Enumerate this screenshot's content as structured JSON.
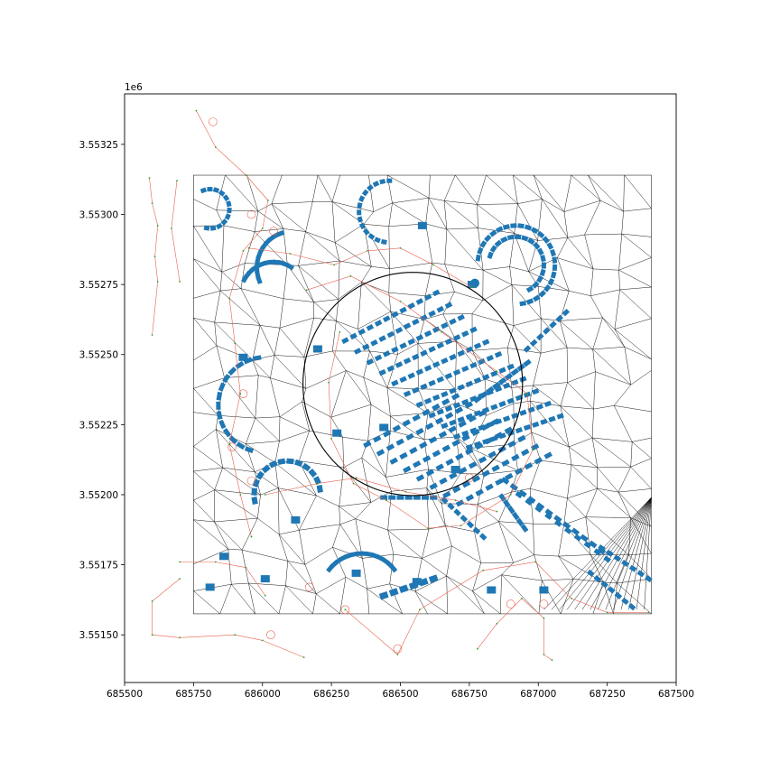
{
  "chart_data": {
    "type": "scatter",
    "title": "",
    "xlabel": "",
    "ylabel": "",
    "y_offset_text": "1e6",
    "xlim": [
      685500,
      687500
    ],
    "ylim": [
      3551330,
      3553430
    ],
    "x_ticks": [
      685500,
      685750,
      686000,
      686250,
      686500,
      686750,
      687000,
      687250,
      687500
    ],
    "x_tick_labels": [
      "685500",
      "685750",
      "686000",
      "686250",
      "686500",
      "686750",
      "687000",
      "687250",
      "687500"
    ],
    "y_ticks": [
      3551500,
      3551750,
      3552000,
      3552250,
      3552500,
      3552750,
      3553000,
      3553250
    ],
    "y_tick_labels": [
      "3.55150",
      "3.55175",
      "3.55200",
      "3.55225",
      "3.55250",
      "3.55275",
      "3.55300",
      "3.55325"
    ],
    "grid": false,
    "study_area_bbox": {
      "xmin": 685750,
      "xmax": 687410,
      "ymin": 3551575,
      "ymax": 3553140
    },
    "highlight_circle": {
      "center_x": 686545,
      "center_y": 3552395,
      "radius": 398
    },
    "colors": {
      "buildings": "#1f77b4",
      "tessellation": "#000000",
      "streets": "#e8604c",
      "nodes": "#2ca02c",
      "circle": "#000000"
    }
  }
}
